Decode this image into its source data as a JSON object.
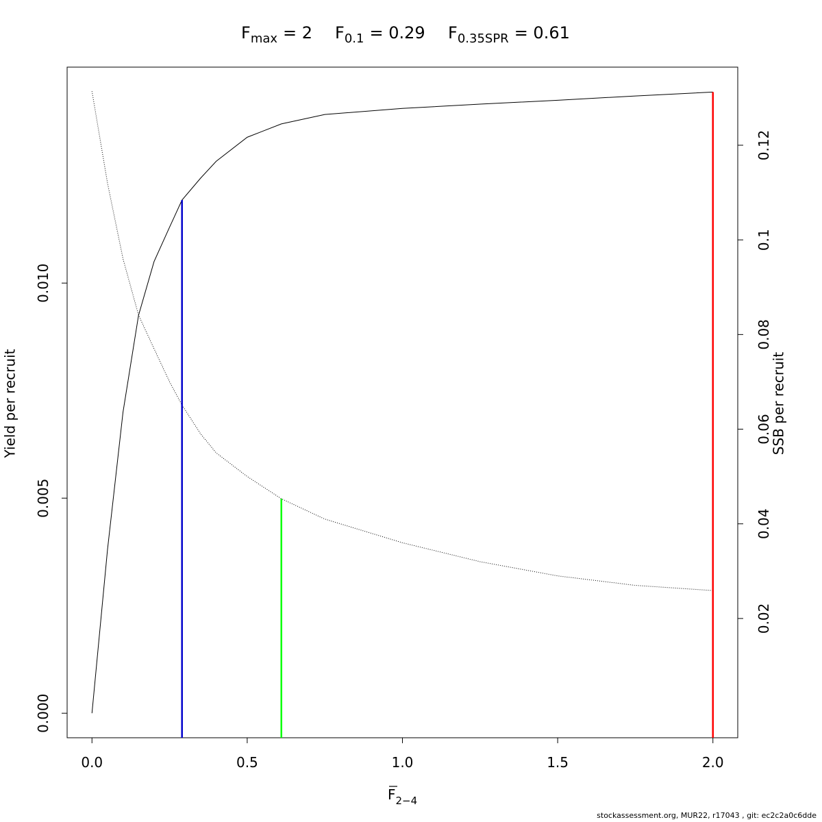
{
  "chart_data": {
    "type": "line",
    "title_parts": [
      {
        "base": "F",
        "sub": "max",
        "rest": "= 2"
      },
      {
        "base": "F",
        "sub": "0.1",
        "rest": "= 0.29"
      },
      {
        "base": "F",
        "sub": "0.35SPR",
        "rest": "= 0.61"
      }
    ],
    "xlabel": {
      "base": "F",
      "sub": "2−4"
    },
    "ylabel": "Yield per recruit",
    "y2label": "SSB per recruit",
    "x": [
      0,
      0.05,
      0.1,
      0.15,
      0.2,
      0.25,
      0.29,
      0.35,
      0.4,
      0.5,
      0.61,
      0.75,
      1.0,
      1.25,
      1.5,
      1.75,
      2.0
    ],
    "series": [
      {
        "color": "#000000",
        "dash": "solid",
        "values": [
          0,
          0.0038,
          0.007,
          0.00925,
          0.0105,
          0.0113,
          0.01193,
          0.01244,
          0.01283,
          0.01339,
          0.0137,
          0.01392,
          0.01406,
          0.01416,
          0.01425,
          0.01435,
          0.01444
        ]
      },
      {
        "color": "#000000",
        "dash": "dotted",
        "axis": "y2",
        "values": [
          0.1314,
          0.112,
          0.096,
          0.0841,
          0.077,
          0.07,
          0.0651,
          0.059,
          0.055,
          0.05,
          0.0453,
          0.041,
          0.036,
          0.032,
          0.029,
          0.027,
          0.0259
        ]
      }
    ],
    "reference_lines": [
      {
        "x": 0.29,
        "top": 0.01193,
        "axis": "y",
        "color": "#0000cc"
      },
      {
        "x": 0.61,
        "top": 0.0453,
        "axis": "y2",
        "color": "#00ff00"
      },
      {
        "x": 2,
        "top": 0.01444,
        "axis": "y",
        "color": "#ff0000"
      }
    ],
    "xlim": [
      -0.08,
      2.08
    ],
    "ylim": [
      -0.00057,
      0.01502
    ],
    "y2lim": [
      -0.0052,
      0.1365
    ],
    "xticks": [
      {
        "value": 0,
        "label": "0.0"
      },
      {
        "value": 0.5,
        "label": "0.5"
      },
      {
        "value": 1,
        "label": "1.0"
      },
      {
        "value": 1.5,
        "label": "1.5"
      },
      {
        "value": 2,
        "label": "2.0"
      }
    ],
    "yticks": [
      {
        "value": 0,
        "label": "0.000"
      },
      {
        "value": 0.005,
        "label": "0.005"
      },
      {
        "value": 0.01,
        "label": "0.010"
      }
    ],
    "y2ticks": [
      0.02,
      0.04,
      0.06,
      0.08,
      0.1,
      0.12
    ],
    "footer": "stockassessment.org, MUR22, r17043 , git: ec2c2a0c6dde"
  }
}
